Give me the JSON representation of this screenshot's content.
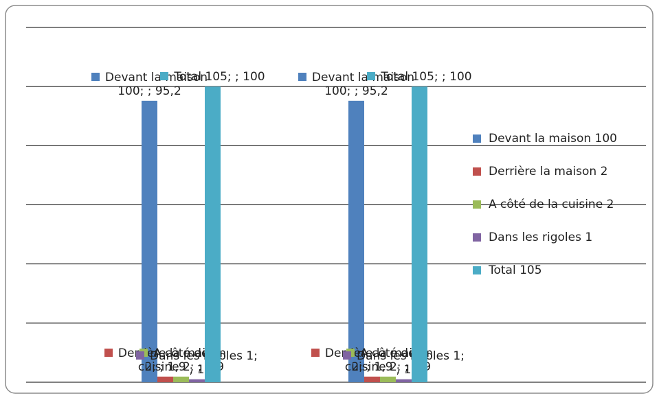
{
  "chart_data": {
    "type": "bar",
    "categories": [
      null,
      null
    ],
    "series": [
      {
        "name": "Devant la maison 100",
        "color": "#4f81bd",
        "values": [
          95.2,
          95.2
        ],
        "value_labels": [
          "Devant la maison 100; ; 95,2",
          "Devant la maison 100; ; 95,2"
        ]
      },
      {
        "name": "Derrière la maison 2",
        "color": "#c0504d",
        "values": [
          1.9,
          1.9
        ],
        "value_labels": [
          "Derrière la maison 2; ; 1,9",
          "Derrière la maison 2; ; 1,9"
        ]
      },
      {
        "name": "A côté de la cuisine 2",
        "color": "#9bbb59",
        "values": [
          1.9,
          1.9
        ],
        "value_labels": [
          "A côté de la cuisine 2; ; 1,9",
          "A côté de la cuisine 2; ; 1,9"
        ]
      },
      {
        "name": "Dans les rigoles 1",
        "color": "#8064a2",
        "values": [
          1,
          1
        ],
        "value_labels": [
          "Dans les rigoles 1; ; 1",
          "Dans les rigoles 1; ; 1"
        ]
      },
      {
        "name": "Total 105",
        "color": "#4bacc6",
        "values": [
          100,
          100
        ],
        "value_labels": [
          "Total 105; ; 100",
          "Total 105; ; 100"
        ]
      }
    ],
    "ylim": [
      0,
      120
    ],
    "yticks": [
      0,
      20,
      40,
      60,
      80,
      100,
      120
    ],
    "grid": true,
    "legend": "right"
  }
}
